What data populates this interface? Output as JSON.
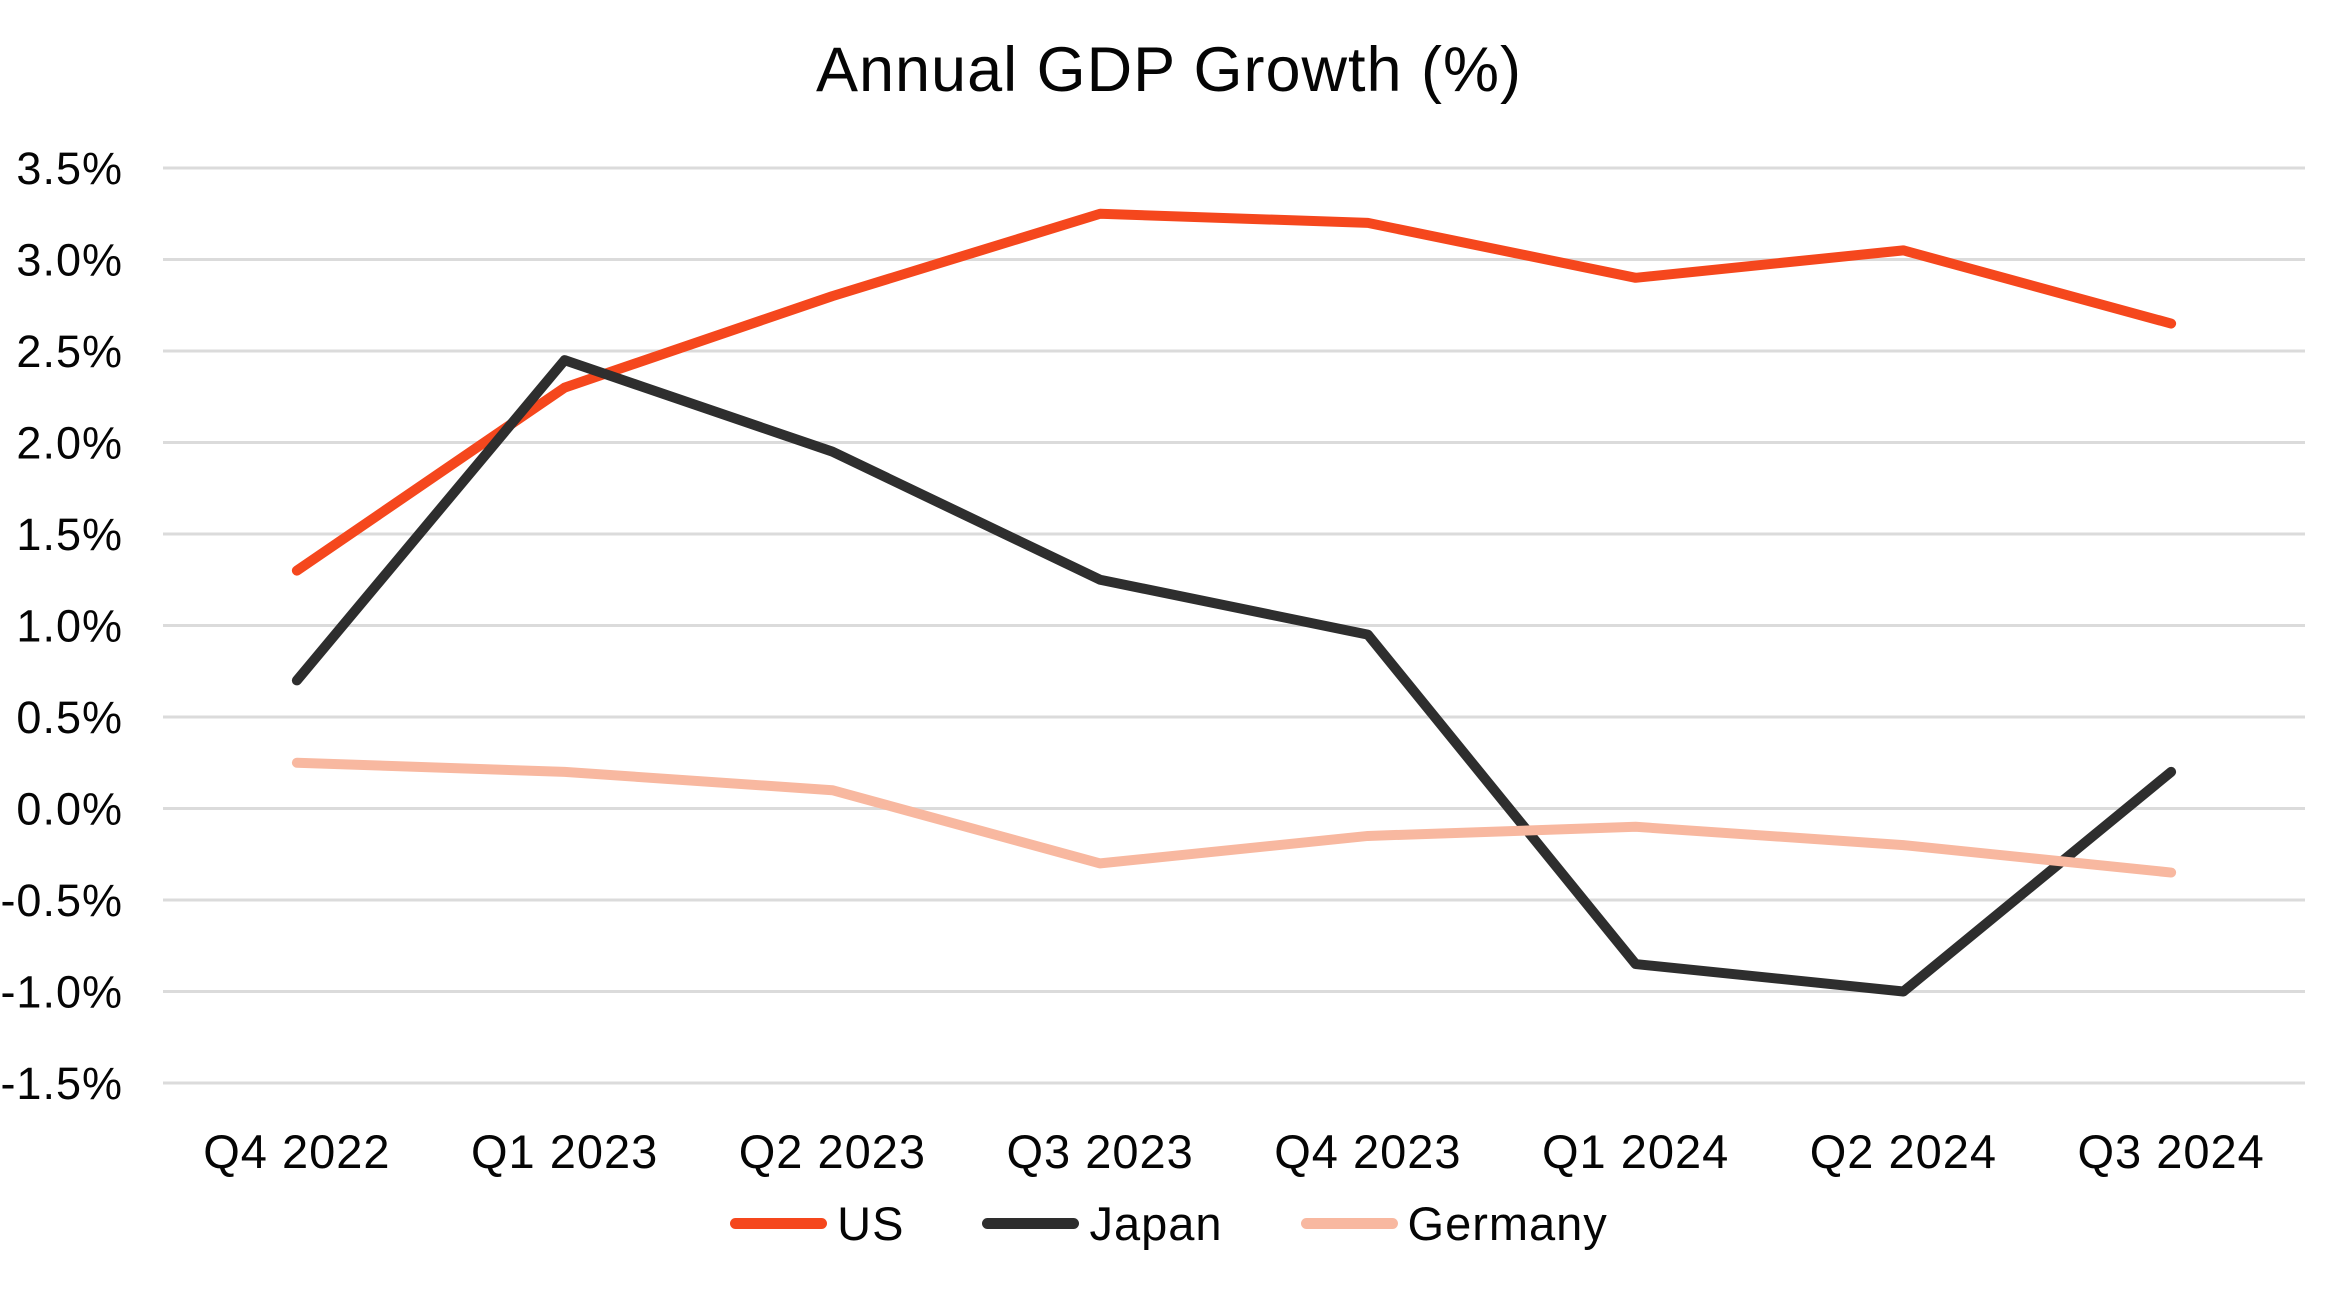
{
  "page": {
    "background_color": "#ffffff",
    "text_color": "#050505"
  },
  "chart_data": {
    "type": "line",
    "title": "Annual GDP Growth (%)",
    "categories": [
      "Q4 2022",
      "Q1 2023",
      "Q2 2023",
      "Q3 2023",
      "Q4 2023",
      "Q1 2024",
      "Q2 2024",
      "Q3 2024"
    ],
    "series": [
      {
        "name": "US",
        "color": "#F5471D",
        "values": [
          1.3,
          2.3,
          2.8,
          3.25,
          3.2,
          2.9,
          3.05,
          2.65
        ]
      },
      {
        "name": "Japan",
        "color": "#2E2E2E",
        "values": [
          0.7,
          2.45,
          1.95,
          1.25,
          0.95,
          -0.85,
          -1.0,
          0.2
        ]
      },
      {
        "name": "Germany",
        "color": "#F8B8A0",
        "values": [
          0.25,
          0.2,
          0.1,
          -0.3,
          -0.15,
          -0.1,
          -0.2,
          -0.35
        ]
      }
    ],
    "xlabel": "",
    "ylabel": "",
    "ylim": [
      -1.5,
      3.5
    ],
    "y_tick_step": 0.5,
    "y_tick_suffix": "%",
    "y_tick_decimals": 1,
    "grid": "horizontal",
    "gridline_color": "#DBDBDB",
    "legend_position": "bottom-center",
    "legend_entries": [
      "US",
      "Japan",
      "Germany"
    ]
  }
}
